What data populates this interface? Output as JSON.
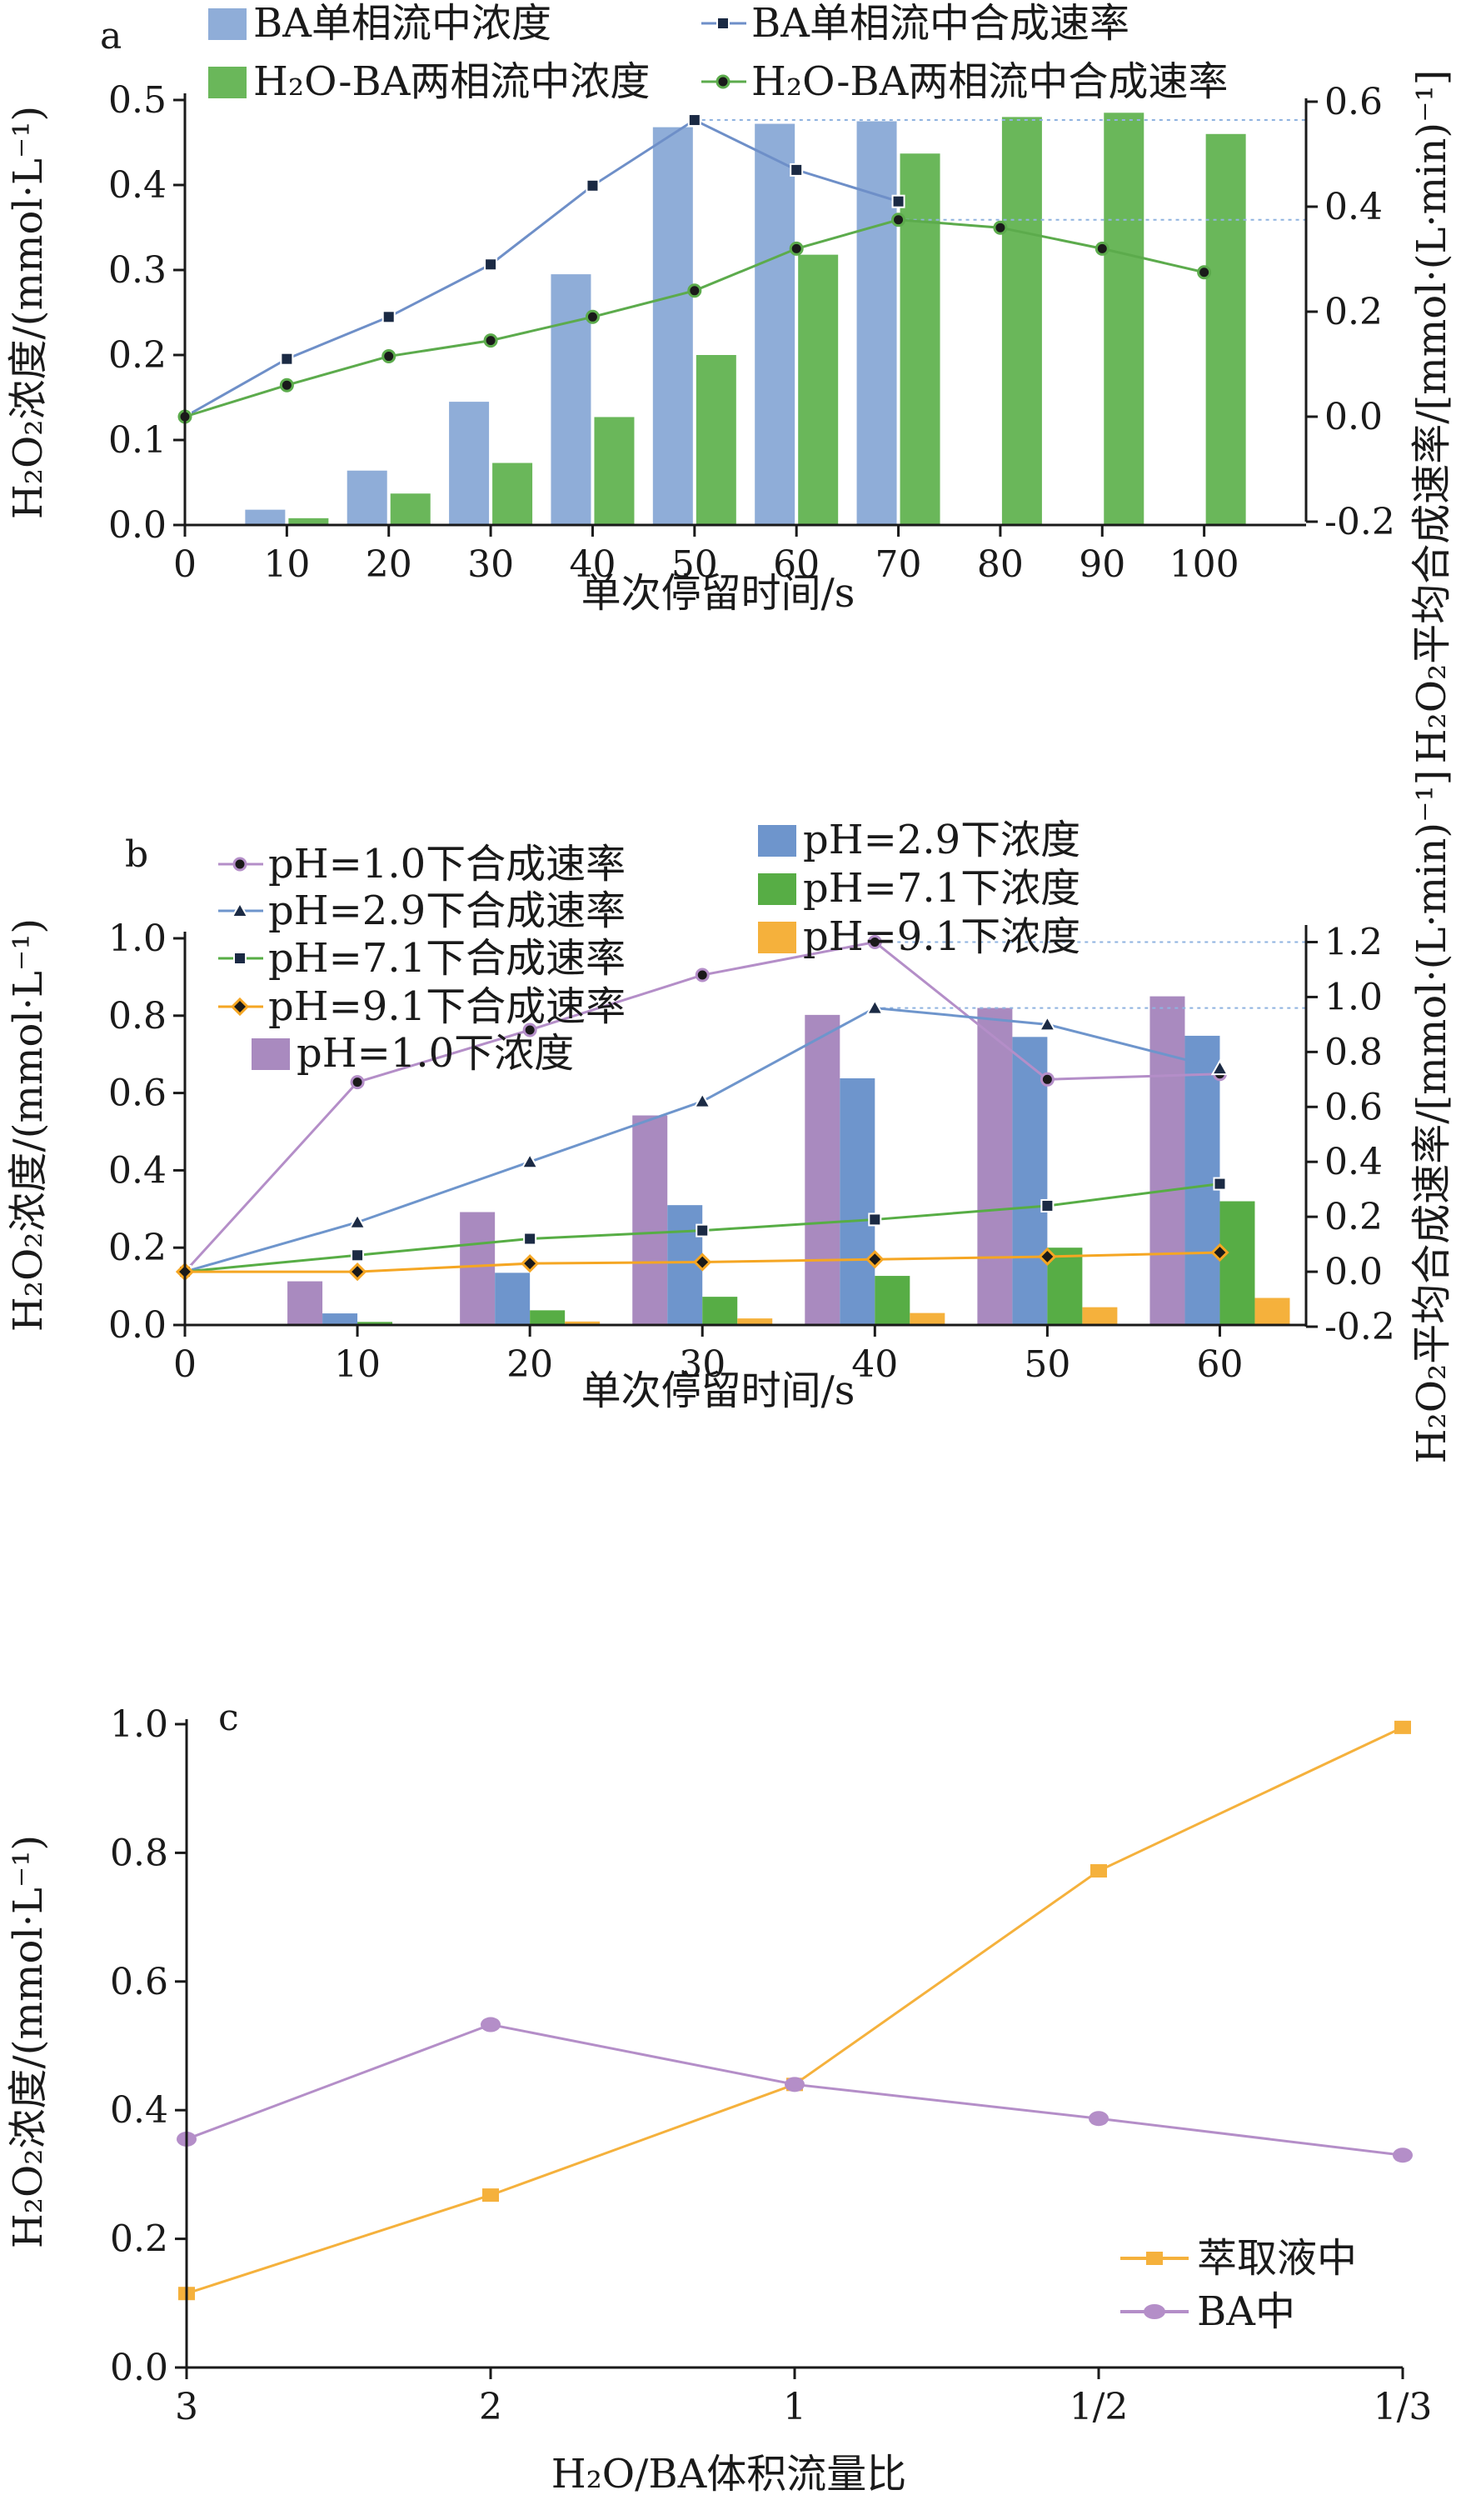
{
  "chart_data": [
    {
      "panel_label": "a",
      "type": "bar",
      "xlabel": "单次停留时间/s",
      "ylabel": "H₂O₂浓度/(mmol·L⁻¹)",
      "ylabel_right": "H₂O₂平均合成速率/[mmol·(L·min)⁻¹]",
      "xlim": [
        0,
        110
      ],
      "ylim": [
        0,
        0.5
      ],
      "ylim_right": [
        -0.2,
        0.6
      ],
      "x_ticks": [
        0,
        10,
        20,
        30,
        40,
        50,
        60,
        70,
        80,
        90,
        100
      ],
      "y_ticks": [
        "0.0",
        "0.1",
        "0.2",
        "0.3",
        "0.4",
        "0.5"
      ],
      "y_ticks_right": [
        "-0.2",
        "0.0",
        "0.2",
        "0.4",
        "0.6"
      ],
      "legend_position": "top",
      "bar_series": [
        {
          "name": "BA单相流中浓度",
          "color": "#8fadd8",
          "x": [
            10,
            20,
            30,
            40,
            50,
            60,
            70
          ],
          "values": [
            0.018,
            0.064,
            0.145,
            0.295,
            0.468,
            0.472,
            0.475
          ]
        },
        {
          "name": "H₂O-BA两相流中浓度",
          "color": "#6ab75a",
          "x": [
            10,
            20,
            30,
            40,
            50,
            60,
            70,
            80,
            90,
            100
          ],
          "values": [
            0.008,
            0.037,
            0.073,
            0.127,
            0.2,
            0.318,
            0.437,
            0.48,
            0.485,
            0.46
          ]
        }
      ],
      "line_series": [
        {
          "name": "BA单相流中合成速率",
          "color": "#6e8fc8",
          "marker": "square",
          "axis": "right",
          "x": [
            0,
            10,
            20,
            30,
            40,
            50,
            60,
            70
          ],
          "values": [
            0.0,
            0.11,
            0.19,
            0.29,
            0.44,
            0.565,
            0.47,
            0.41
          ]
        },
        {
          "name": "H₂O-BA两相流中合成速率",
          "color": "#5cab4c",
          "marker": "circle",
          "axis": "right",
          "x": [
            0,
            10,
            20,
            30,
            40,
            50,
            60,
            70,
            80,
            90,
            100
          ],
          "values": [
            0.0,
            0.06,
            0.115,
            0.145,
            0.19,
            0.24,
            0.32,
            0.375,
            0.36,
            0.32,
            0.275
          ]
        }
      ],
      "reference_lines_right": [
        0.565,
        0.375
      ]
    },
    {
      "panel_label": "b",
      "type": "bar",
      "xlabel": "单次停留时间/s",
      "ylabel": "H₂O₂浓度/(mmol·L⁻¹)",
      "ylabel_right": "H₂O₂平均合成速率/[mmol·(L·min)⁻¹]",
      "xlim": [
        0,
        65
      ],
      "ylim": [
        0,
        1.0
      ],
      "ylim_right": [
        -0.2,
        1.25
      ],
      "x_ticks": [
        0,
        10,
        20,
        30,
        40,
        50,
        60
      ],
      "y_ticks": [
        "0.0",
        "0.2",
        "0.4",
        "0.6",
        "0.8",
        "1.0"
      ],
      "y_ticks_right": [
        "-0.2",
        "0.0",
        "0.2",
        "0.4",
        "0.6",
        "0.8",
        "1.0",
        "1.2"
      ],
      "legend_position": "top",
      "categories": [
        10,
        20,
        30,
        40,
        50,
        60
      ],
      "bar_series": [
        {
          "name": "pH=1.0下浓度",
          "color": "#a98abf",
          "values": [
            0.113,
            0.292,
            0.542,
            0.802,
            0.82,
            0.85
          ]
        },
        {
          "name": "pH=2.9下浓度",
          "color": "#6e95cc",
          "values": [
            0.03,
            0.135,
            0.31,
            0.638,
            0.745,
            0.748
          ]
        },
        {
          "name": "pH=7.1下浓度",
          "color": "#57ad45",
          "values": [
            0.008,
            0.038,
            0.073,
            0.127,
            0.2,
            0.32
          ]
        },
        {
          "name": "pH=9.1下浓度",
          "color": "#f5b13c",
          "values": [
            0.002,
            0.009,
            0.017,
            0.031,
            0.046,
            0.07
          ]
        }
      ],
      "line_series": [
        {
          "name": "pH=1.0下合成速率",
          "color": "#b48ec8",
          "marker": "circle",
          "axis": "right",
          "x": [
            0,
            10,
            20,
            30,
            40,
            50,
            60
          ],
          "values": [
            0.0,
            0.69,
            0.88,
            1.08,
            1.2,
            0.7,
            0.72
          ]
        },
        {
          "name": "pH=2.9下合成速率",
          "color": "#6e95cc",
          "marker": "triangle",
          "axis": "right",
          "x": [
            0,
            10,
            20,
            30,
            40,
            50,
            60
          ],
          "values": [
            0.0,
            0.18,
            0.4,
            0.62,
            0.96,
            0.9,
            0.74
          ]
        },
        {
          "name": "pH=7.1下合成速率",
          "color": "#57ad45",
          "marker": "square",
          "axis": "right",
          "x": [
            0,
            10,
            20,
            30,
            40,
            50,
            60
          ],
          "values": [
            0.0,
            0.06,
            0.12,
            0.15,
            0.19,
            0.24,
            0.32
          ]
        },
        {
          "name": "pH=9.1下合成速率",
          "color": "#f5a623",
          "marker": "diamond",
          "axis": "right",
          "x": [
            0,
            10,
            20,
            30,
            40,
            50,
            60
          ],
          "values": [
            0.0,
            0.0,
            0.03,
            0.035,
            0.045,
            0.055,
            0.07
          ]
        }
      ],
      "reference_lines_right": [
        1.2,
        0.96
      ]
    },
    {
      "panel_label": "c",
      "type": "line",
      "xlabel": "H₂O/BA体积流量比",
      "ylabel": "H₂O₂浓度/(mmol·L⁻¹)",
      "categories": [
        "3",
        "2",
        "1",
        "1/2",
        "1/3"
      ],
      "ylim": [
        0,
        1.0
      ],
      "y_ticks": [
        "0.0",
        "0.2",
        "0.4",
        "0.6",
        "0.8",
        "1.0"
      ],
      "legend_position": "bottom-right",
      "series": [
        {
          "name": "萃取液中",
          "color": "#f5b13c",
          "marker": "square",
          "values": [
            0.115,
            0.268,
            0.44,
            0.772,
            0.995
          ]
        },
        {
          "name": "BA中",
          "color": "#b48ec8",
          "marker": "circle",
          "values": [
            0.355,
            0.533,
            0.44,
            0.387,
            0.33
          ]
        }
      ]
    }
  ]
}
